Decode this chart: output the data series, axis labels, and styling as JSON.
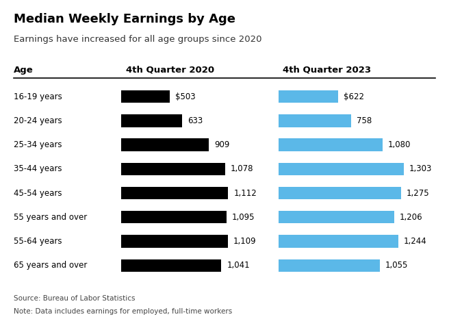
{
  "title": "Median Weekly Earnings by Age",
  "subtitle": "Earnings have increased for all age groups since 2020",
  "col1_label": "Age",
  "col2_label": "4th Quarter 2020",
  "col3_label": "4th Quarter 2023",
  "age_groups": [
    "16-19 years",
    "20-24 years",
    "25-34 years",
    "35-44 years",
    "45-54 years",
    "55 years and over",
    "55-64 years",
    "65 years and over"
  ],
  "values_2020": [
    503,
    633,
    909,
    1078,
    1112,
    1095,
    1109,
    1041
  ],
  "values_2023": [
    622,
    758,
    1080,
    1303,
    1275,
    1206,
    1244,
    1055
  ],
  "labels_2020": [
    "$503",
    "633",
    "909",
    "1,078",
    "1,112",
    "1,095",
    "1,109",
    "1,041"
  ],
  "labels_2023": [
    "$622",
    "758",
    "1,080",
    "1,303",
    "1,275",
    "1,206",
    "1,244",
    "1,055"
  ],
  "color_2020": "#000000",
  "color_2023": "#5BB8E8",
  "background_color": "#ffffff",
  "source_text": "Source: Bureau of Labor Statistics",
  "note_text": "Note: Data includes earnings for employed, full-time workers",
  "max_bar_value": 1400
}
